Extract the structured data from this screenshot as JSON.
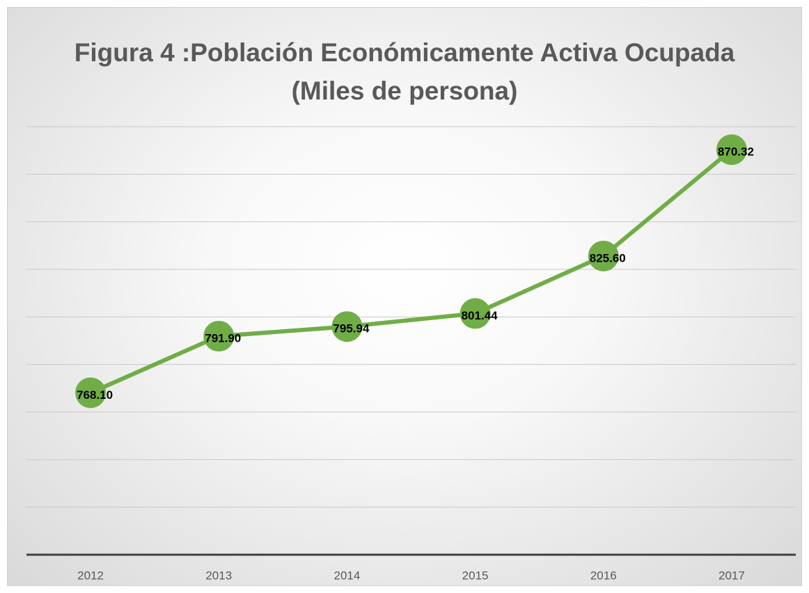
{
  "chart_data": {
    "type": "line",
    "title": "Figura 4 :Población Económicamente Activa Ocupada (Miles de persona)",
    "categories": [
      "2012",
      "2013",
      "2014",
      "2015",
      "2016",
      "2017"
    ],
    "values": [
      768.1,
      791.9,
      795.94,
      801.44,
      825.6,
      870.32
    ],
    "value_labels": [
      "768.10",
      "791.90",
      "795.94",
      "801.44",
      "825.60",
      "870.32"
    ],
    "color": "#70ad47",
    "ylim": [
      700,
      880
    ],
    "yticks": [
      700,
      720,
      740,
      760,
      780,
      800,
      820,
      840,
      860,
      880
    ],
    "grid": true
  }
}
